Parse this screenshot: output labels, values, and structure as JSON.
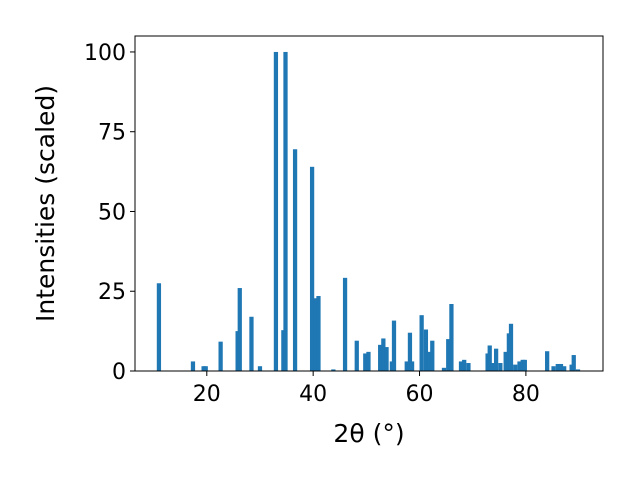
{
  "chart_data": {
    "type": "bar",
    "xlabel": "2θ (°)",
    "ylabel": "Intensities (scaled)",
    "xlim": [
      6.5,
      94.5
    ],
    "ylim": [
      0,
      105
    ],
    "x_ticks": [
      20,
      40,
      60,
      80
    ],
    "y_ticks": [
      0,
      25,
      50,
      75,
      100
    ],
    "grid": false,
    "bar_width": 0.8,
    "bar_color": "#1f77b4",
    "x": [
      11.0,
      17.4,
      19.4,
      19.8,
      22.6,
      25.8,
      26.2,
      28.4,
      30.0,
      33.0,
      34.4,
      34.8,
      36.6,
      39.8,
      40.4,
      41.0,
      43.8,
      46.0,
      48.2,
      49.8,
      50.4,
      52.6,
      53.2,
      53.8,
      54.8,
      55.2,
      57.6,
      58.2,
      58.6,
      60.4,
      61.2,
      61.8,
      62.4,
      64.6,
      65.4,
      66.0,
      67.8,
      68.4,
      69.2,
      72.8,
      73.2,
      73.8,
      74.4,
      75.2,
      76.2,
      76.8,
      77.2,
      78.0,
      78.8,
      79.4,
      79.8,
      84.0,
      85.2,
      86.0,
      86.6,
      87.2,
      88.6,
      89.0,
      89.8
    ],
    "values": [
      27.5,
      3,
      1.5,
      1.5,
      9.2,
      12.5,
      26,
      17,
      1.5,
      100,
      12.8,
      100,
      69.5,
      64,
      22.8,
      23.5,
      0.5,
      29.2,
      9.5,
      5.5,
      6,
      8.2,
      10.2,
      7.5,
      3,
      15.8,
      3,
      12,
      3,
      17.5,
      13,
      6,
      9.5,
      1,
      10,
      21,
      3,
      3.5,
      2.5,
      5.5,
      8,
      2.5,
      7,
      2.5,
      6,
      11.8,
      14.8,
      2,
      3,
      3.5,
      3.5,
      6.2,
      1.5,
      2.2,
      2.2,
      1.5,
      2,
      5,
      0.5
    ]
  }
}
